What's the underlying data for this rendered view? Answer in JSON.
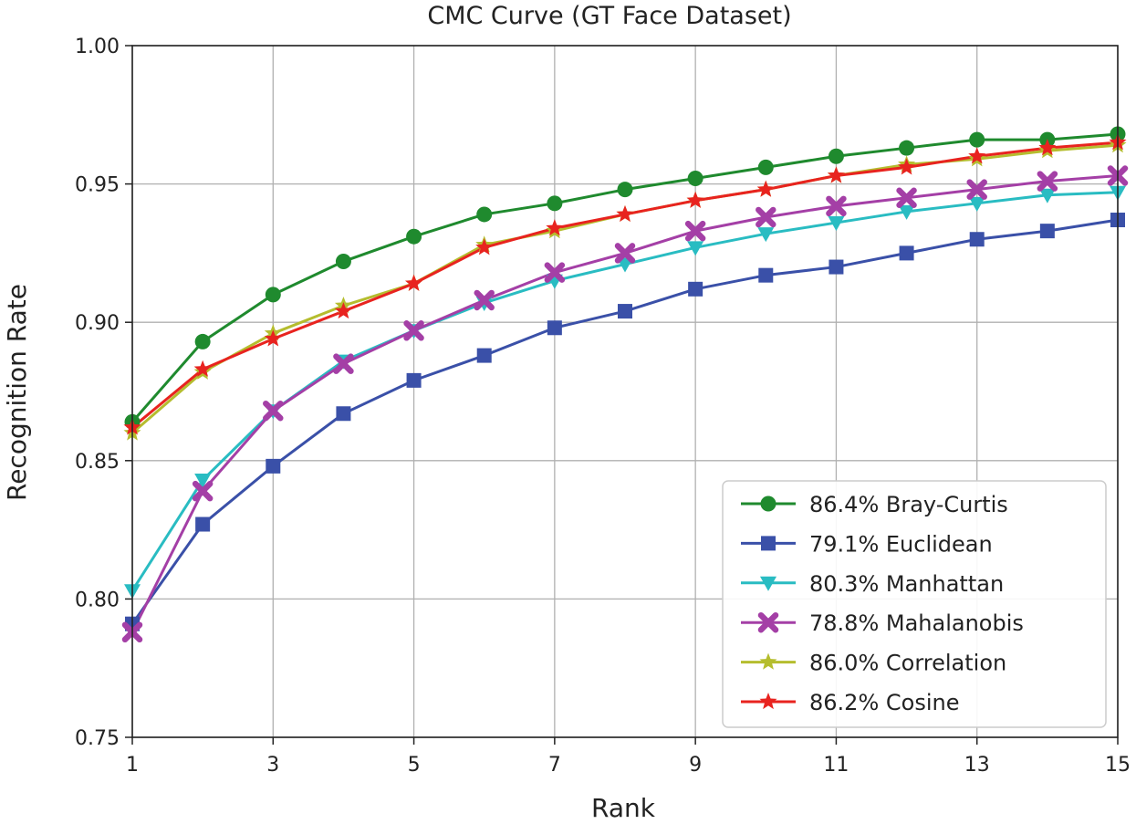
{
  "chart_data": {
    "type": "line",
    "title": "CMC Curve (GT Face Dataset)",
    "xlabel": "Rank",
    "ylabel": "Recognition Rate",
    "xlim": [
      1,
      15
    ],
    "ylim": [
      0.75,
      1.0
    ],
    "grid": true,
    "legend_position": "bottom-right",
    "x": [
      1,
      2,
      3,
      4,
      5,
      6,
      7,
      8,
      9,
      10,
      11,
      12,
      13,
      14,
      15
    ],
    "xticks": [
      "1",
      "3",
      "5",
      "7",
      "9",
      "11",
      "13",
      "15"
    ],
    "yticks": [
      "0.75",
      "0.80",
      "0.85",
      "0.90",
      "0.95",
      "1.00"
    ],
    "series": [
      {
        "name": "86.4% Bray-Curtis",
        "color": "#1f8a2e",
        "marker": "circle",
        "values": [
          0.864,
          0.893,
          0.91,
          0.922,
          0.931,
          0.939,
          0.943,
          0.948,
          0.952,
          0.956,
          0.96,
          0.963,
          0.966,
          0.966,
          0.968
        ]
      },
      {
        "name": "79.1% Euclidean",
        "color": "#3a50a8",
        "marker": "square",
        "values": [
          0.791,
          0.827,
          0.848,
          0.867,
          0.879,
          0.888,
          0.898,
          0.904,
          0.912,
          0.917,
          0.92,
          0.925,
          0.93,
          0.933,
          0.937
        ]
      },
      {
        "name": "80.3% Manhattan",
        "color": "#29bcc2",
        "marker": "triangle-down",
        "values": [
          0.803,
          0.843,
          0.868,
          0.886,
          0.897,
          0.907,
          0.915,
          0.921,
          0.927,
          0.932,
          0.936,
          0.94,
          0.943,
          0.946,
          0.947
        ]
      },
      {
        "name": "78.8% Mahalanobis",
        "color": "#a43fa6",
        "marker": "plus-x",
        "values": [
          0.788,
          0.839,
          0.868,
          0.885,
          0.897,
          0.908,
          0.918,
          0.925,
          0.933,
          0.938,
          0.942,
          0.945,
          0.948,
          0.951,
          0.953
        ]
      },
      {
        "name": "86.0% Correlation",
        "color": "#b5bd2e",
        "marker": "star",
        "values": [
          0.86,
          0.882,
          0.896,
          0.906,
          0.914,
          0.928,
          0.933,
          0.939,
          0.944,
          0.948,
          0.953,
          0.957,
          0.959,
          0.962,
          0.964
        ]
      },
      {
        "name": "86.2% Cosine",
        "color": "#e8231f",
        "marker": "star",
        "values": [
          0.862,
          0.883,
          0.894,
          0.904,
          0.914,
          0.927,
          0.934,
          0.939,
          0.944,
          0.948,
          0.953,
          0.956,
          0.96,
          0.963,
          0.965
        ]
      }
    ]
  }
}
